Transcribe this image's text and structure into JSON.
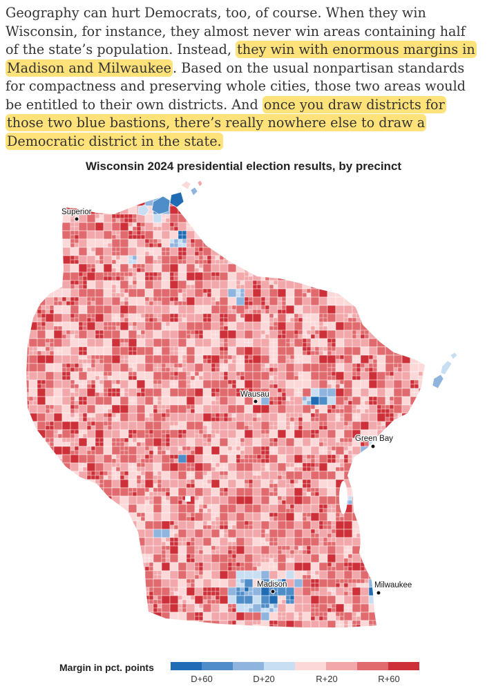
{
  "article": {
    "segments": [
      {
        "text": "Geography can hurt Democrats, too, of course. When they win Wisconsin, for instance, they almost never win areas containing half of the state’s population. Instead, ",
        "highlight": false
      },
      {
        "text": "they win with enormous margins in Madison and Milwaukee",
        "highlight": true
      },
      {
        "text": ". Based on the usual nonpartisan standards for compactness and preserving whole cities, those two areas would be entitled to their own districts. And ",
        "highlight": false
      },
      {
        "text": "once you draw districts for those two blue bastions, there’s really nowhere else to draw a Democratic district in the state.",
        "highlight": true
      }
    ]
  },
  "map": {
    "title": "Wisconsin 2024 presidential election results, by precinct",
    "cities": [
      {
        "name": "Superior"
      },
      {
        "name": "Wausau"
      },
      {
        "name": "Green Bay"
      },
      {
        "name": "Madison"
      },
      {
        "name": "Milwaukee"
      }
    ]
  },
  "legend": {
    "title": "Margin in pct. points",
    "colors": [
      "#1f6cb4",
      "#4f8dc9",
      "#8fb5de",
      "#c8def2",
      "#fcd8d8",
      "#f2a8aa",
      "#e06a6d",
      "#cd3038"
    ],
    "ticks": [
      "D+60",
      "D+20",
      "R+20",
      "R+60"
    ]
  }
}
